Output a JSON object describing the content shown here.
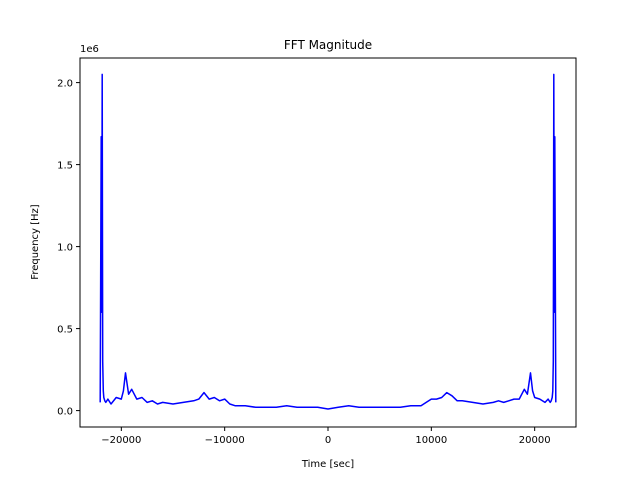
{
  "chart_data": {
    "type": "line",
    "title": "FFT Magnitude",
    "xlabel": "Time [sec]",
    "ylabel": "Frequency [Hz]",
    "y_offset_label": "1e6",
    "xlim": [
      -24000,
      24000
    ],
    "ylim": [
      -0.1,
      2.15
    ],
    "x_ticks": [
      -20000,
      -10000,
      0,
      10000,
      20000
    ],
    "x_tick_labels": [
      "−20000",
      "−10000",
      "0",
      "10000",
      "20000"
    ],
    "y_ticks": [
      0.0,
      0.5,
      1.0,
      1.5,
      2.0
    ],
    "y_tick_labels": [
      "0.0",
      "0.5",
      "1.0",
      "1.5",
      "2.0"
    ],
    "grid": false,
    "series": [
      {
        "color": "#0000ff",
        "x": [
          -22050,
          -21950,
          -21900,
          -21850,
          -21800,
          -21750,
          -21700,
          -21600,
          -21500,
          -21300,
          -21000,
          -20500,
          -20000,
          -19800,
          -19600,
          -19300,
          -19000,
          -18500,
          -18000,
          -17500,
          -17000,
          -16500,
          -16000,
          -15000,
          -14000,
          -13000,
          -12500,
          -12000,
          -11500,
          -11000,
          -10500,
          -10000,
          -9500,
          -9000,
          -8000,
          -7000,
          -6000,
          -5000,
          -4000,
          -3000,
          -2000,
          -1000,
          0,
          1000,
          2000,
          3000,
          4000,
          5000,
          6000,
          7000,
          8000,
          9000,
          9500,
          10000,
          10500,
          11000,
          11500,
          12000,
          12500,
          13000,
          14000,
          15000,
          16000,
          16500,
          17000,
          17500,
          18000,
          18500,
          19000,
          19300,
          19600,
          19800,
          20000,
          20500,
          21000,
          21300,
          21500,
          21600,
          21700,
          21750,
          21800,
          21850,
          21900,
          21950,
          22050
        ],
        "y": [
          0.05,
          1.67,
          0.6,
          2.05,
          0.3,
          0.12,
          0.08,
          0.06,
          0.05,
          0.07,
          0.04,
          0.08,
          0.07,
          0.12,
          0.23,
          0.1,
          0.13,
          0.07,
          0.08,
          0.05,
          0.06,
          0.04,
          0.05,
          0.04,
          0.05,
          0.06,
          0.07,
          0.11,
          0.07,
          0.08,
          0.06,
          0.07,
          0.04,
          0.03,
          0.03,
          0.02,
          0.02,
          0.02,
          0.03,
          0.02,
          0.02,
          0.02,
          0.01,
          0.02,
          0.03,
          0.02,
          0.02,
          0.02,
          0.02,
          0.02,
          0.03,
          0.03,
          0.05,
          0.07,
          0.07,
          0.08,
          0.11,
          0.09,
          0.06,
          0.06,
          0.05,
          0.04,
          0.05,
          0.06,
          0.05,
          0.06,
          0.07,
          0.07,
          0.13,
          0.1,
          0.23,
          0.12,
          0.08,
          0.07,
          0.05,
          0.07,
          0.05,
          0.06,
          0.08,
          0.12,
          0.3,
          2.05,
          0.6,
          1.67,
          0.05
        ]
      }
    ]
  }
}
